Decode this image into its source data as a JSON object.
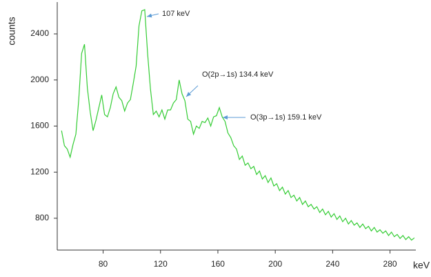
{
  "chart_data": {
    "type": "line",
    "x_label": "keV",
    "y_label": "counts",
    "annotations": [
      {
        "text": "107 keV",
        "x": 107
      },
      {
        "text": "O(2p→1s) 134.4 keV",
        "x": 134.4
      },
      {
        "text": "O(3p→1s) 159.1 keV",
        "x": 159.1
      }
    ],
    "xlim": [
      48,
      298
    ],
    "ylim": [
      524,
      2676
    ],
    "xticks": [
      80,
      120,
      160,
      200,
      240,
      280
    ],
    "yticks": [
      800,
      1200,
      1600,
      2000,
      2400
    ],
    "x": [
      51,
      53,
      55,
      57,
      59,
      61,
      63,
      65,
      67,
      69,
      71,
      73,
      75,
      77,
      79,
      81,
      83,
      85,
      87,
      89,
      91,
      93,
      95,
      97,
      99,
      101,
      103,
      105,
      107,
      109,
      111,
      113,
      115,
      117,
      119,
      121,
      123,
      125,
      127,
      129,
      131,
      133,
      135,
      137,
      139,
      141,
      143,
      145,
      147,
      149,
      151,
      153,
      155,
      157,
      159,
      161,
      163,
      165,
      167,
      169,
      171,
      173,
      175,
      177,
      179,
      181,
      183,
      185,
      187,
      189,
      191,
      193,
      195,
      197,
      199,
      201,
      203,
      205,
      207,
      209,
      211,
      213,
      215,
      217,
      219,
      221,
      223,
      225,
      227,
      229,
      231,
      233,
      235,
      237,
      239,
      241,
      243,
      245,
      247,
      249,
      251,
      253,
      255,
      257,
      259,
      261,
      263,
      265,
      267,
      269,
      271,
      273,
      275,
      277,
      279,
      281,
      283,
      285,
      287,
      289,
      291,
      293,
      295,
      297
    ],
    "series": [
      {
        "name": "counts",
        "color": "#33cc33",
        "values": [
          1560,
          1430,
          1400,
          1330,
          1440,
          1530,
          1830,
          2230,
          2310,
          1930,
          1720,
          1560,
          1650,
          1760,
          1870,
          1700,
          1680,
          1760,
          1880,
          1940,
          1850,
          1820,
          1730,
          1800,
          1830,
          1970,
          2120,
          2470,
          2600,
          2610,
          2230,
          1920,
          1700,
          1730,
          1680,
          1740,
          1660,
          1740,
          1740,
          1800,
          1830,
          2000,
          1880,
          1820,
          1660,
          1640,
          1530,
          1600,
          1580,
          1640,
          1630,
          1670,
          1600,
          1680,
          1690,
          1760,
          1680,
          1640,
          1540,
          1500,
          1430,
          1400,
          1310,
          1340,
          1260,
          1280,
          1230,
          1250,
          1180,
          1210,
          1140,
          1170,
          1110,
          1150,
          1080,
          1100,
          1040,
          1070,
          1010,
          1040,
          980,
          1000,
          950,
          980,
          920,
          950,
          900,
          920,
          880,
          900,
          850,
          880,
          830,
          860,
          810,
          840,
          790,
          820,
          770,
          800,
          750,
          780,
          740,
          760,
          720,
          750,
          710,
          730,
          690,
          720,
          680,
          700,
          670,
          690,
          650,
          680,
          640,
          660,
          625,
          650,
          615,
          640,
          610,
          630
        ]
      }
    ],
    "grid": false
  }
}
